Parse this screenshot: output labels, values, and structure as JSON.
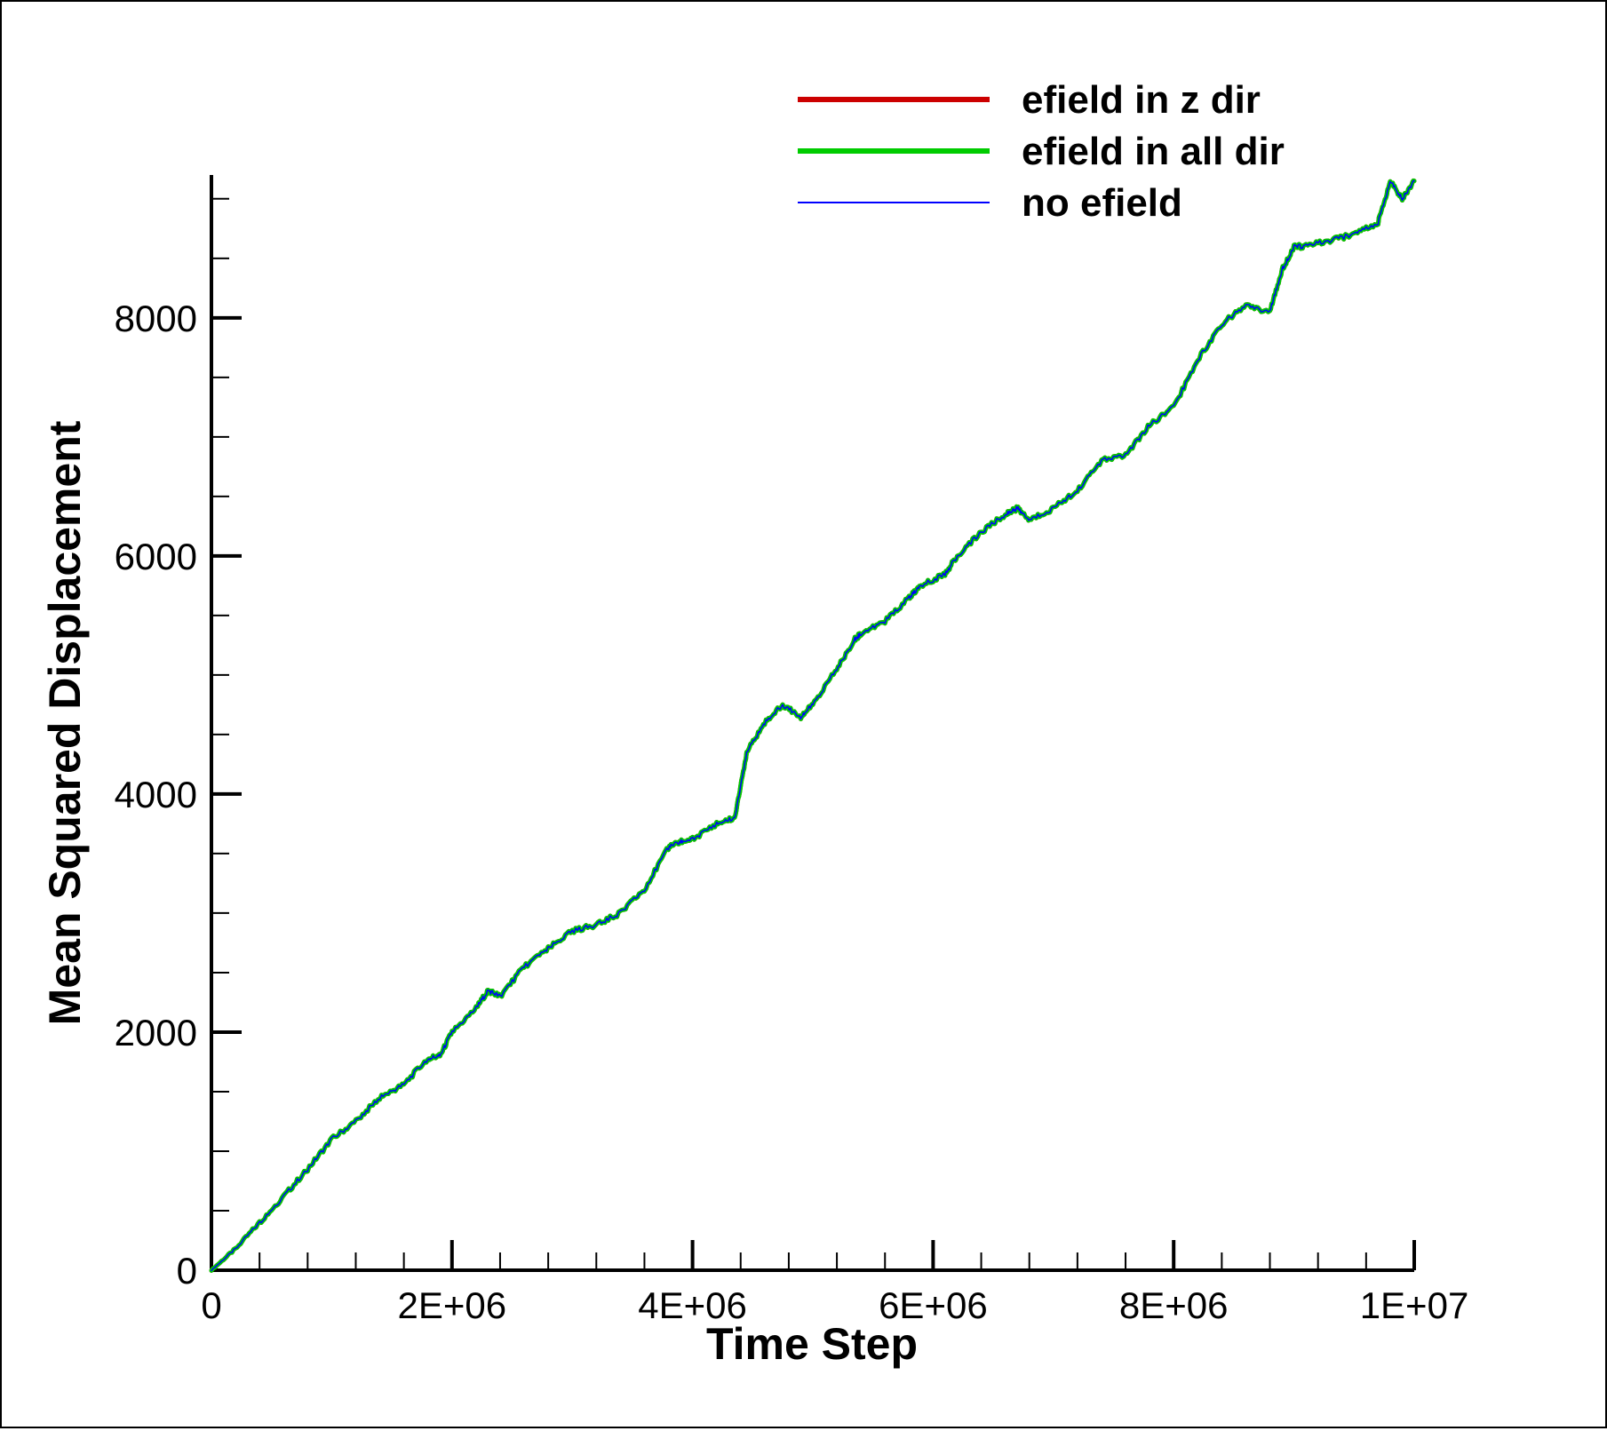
{
  "chart_data": {
    "type": "line",
    "xlabel": "Time Step",
    "ylabel": "Mean Squared Displacement",
    "xlim": [
      0,
      10000000
    ],
    "ylim": [
      0,
      9200
    ],
    "x_ticks": [
      0,
      2000000,
      4000000,
      6000000,
      8000000,
      10000000
    ],
    "x_tick_labels": [
      "0",
      "2E+06",
      "4E+06",
      "6E+06",
      "8E+06",
      "1E+07"
    ],
    "x_minor_step": 400000,
    "y_ticks": [
      0,
      2000,
      4000,
      6000,
      8000
    ],
    "y_tick_labels": [
      "0",
      "2000",
      "4000",
      "6000",
      "8000"
    ],
    "y_minor_step": 500,
    "grid": false,
    "legend_position": "top-right",
    "series": [
      {
        "name": "efield in z dir",
        "color": "#cc0000",
        "line_width": 5
      },
      {
        "name": "efield in all dir",
        "color": "#00cc00",
        "line_width": 5
      },
      {
        "name": "no efield",
        "color": "#0000ff",
        "line_width": 1.5
      }
    ],
    "x": [
      0,
      200000,
      400000,
      600000,
      800000,
      1000000,
      1200000,
      1400000,
      1600000,
      1800000,
      1900000,
      2000000,
      2200000,
      2300000,
      2400000,
      2600000,
      2800000,
      3000000,
      3200000,
      3400000,
      3600000,
      3800000,
      3900000,
      4000000,
      4200000,
      4350000,
      4450000,
      4600000,
      4750000,
      4900000,
      5000000,
      5200000,
      5350000,
      5400000,
      5600000,
      5800000,
      5900000,
      6100000,
      6200000,
      6400000,
      6600000,
      6700000,
      6800000,
      7000000,
      7200000,
      7400000,
      7600000,
      7800000,
      8000000,
      8200000,
      8400000,
      8600000,
      8800000,
      8900000,
      9000000,
      9100000,
      9300000,
      9500000,
      9700000,
      9800000,
      9900000,
      10000000
    ],
    "values": [
      0,
      180,
      400,
      620,
      850,
      1100,
      1250,
      1450,
      1560,
      1780,
      1800,
      2000,
      2200,
      2350,
      2300,
      2550,
      2700,
      2850,
      2900,
      3000,
      3200,
      3550,
      3600,
      3620,
      3750,
      3800,
      4350,
      4600,
      4750,
      4650,
      4750,
      5050,
      5300,
      5350,
      5450,
      5650,
      5750,
      5850,
      6000,
      6200,
      6350,
      6400,
      6300,
      6400,
      6550,
      6800,
      6850,
      7100,
      7250,
      7650,
      7950,
      8100,
      8050,
      8400,
      8600,
      8600,
      8650,
      8700,
      8800,
      9150,
      9000,
      9150
    ]
  }
}
